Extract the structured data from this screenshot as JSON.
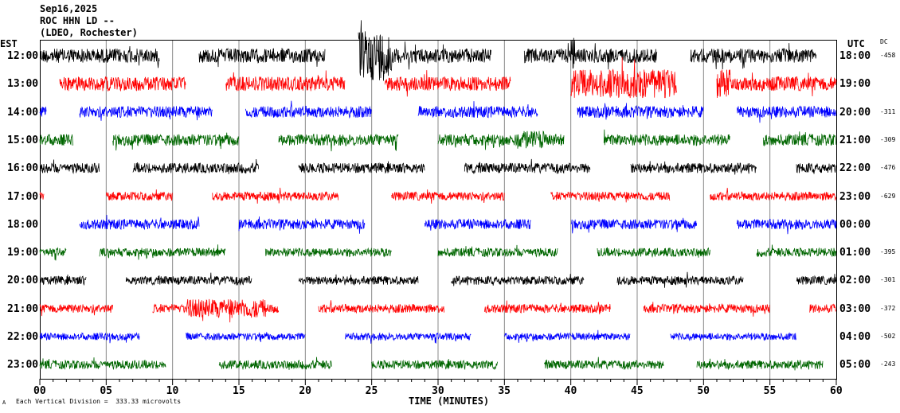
{
  "header": {
    "date": "Sep16,2025",
    "station": "ROC HHN LD --",
    "network": "(LDEO, Rochester)"
  },
  "left_label": "EST",
  "right_label": "UTC",
  "dc_label": "DC",
  "footer": {
    "scale_note": "Each Vertical Division =  333.33 microvolts",
    "corner_mark": "A"
  },
  "chart_data": {
    "type": "line",
    "title": "Sep16,2025 ROC HHN LD --",
    "xlabel": "TIME (MINUTES)",
    "xlim": [
      0,
      60
    ],
    "xticks": [
      "00",
      "05",
      "10",
      "15",
      "20",
      "25",
      "30",
      "35",
      "40",
      "45",
      "50",
      "55",
      "60"
    ],
    "grid": true,
    "rows": [
      {
        "est": "12:00",
        "utc": "18:00",
        "dc": "-458",
        "color": "#000000",
        "amp": 1.0,
        "segments": [
          [
            0,
            9
          ],
          [
            12,
            21.5
          ],
          [
            24,
            34
          ],
          [
            36.5,
            46.5
          ],
          [
            49,
            58.5
          ]
        ],
        "bursts": [
          [
            24,
            26.5,
            3.5
          ],
          [
            40,
            40.3,
            2.5
          ]
        ]
      },
      {
        "est": "13:00",
        "utc": "19:00",
        "dc": "",
        "color": "#ff0000",
        "amp": 1.0,
        "segments": [
          [
            1.5,
            11
          ],
          [
            14,
            23
          ],
          [
            26,
            35.5
          ],
          [
            40,
            48
          ],
          [
            51,
            60
          ]
        ],
        "bursts": [
          [
            40,
            48,
            2
          ],
          [
            51,
            52,
            2
          ]
        ]
      },
      {
        "est": "14:00",
        "utc": "20:00",
        "dc": "-311",
        "color": "#0000ff",
        "amp": 0.8,
        "segments": [
          [
            0,
            0.5
          ],
          [
            3,
            13
          ],
          [
            15.5,
            25
          ],
          [
            28.5,
            37.5
          ],
          [
            40.5,
            50
          ],
          [
            52.5,
            60
          ]
        ],
        "bursts": []
      },
      {
        "est": "15:00",
        "utc": "21:00",
        "dc": "-309",
        "color": "#006600",
        "amp": 0.8,
        "segments": [
          [
            0,
            2.5
          ],
          [
            5.5,
            15
          ],
          [
            18,
            27
          ],
          [
            30,
            39.5
          ],
          [
            42.5,
            52
          ],
          [
            54.5,
            60
          ]
        ],
        "bursts": [
          [
            36,
            38,
            1.6
          ]
        ]
      },
      {
        "est": "16:00",
        "utc": "22:00",
        "dc": "-476",
        "color": "#000000",
        "amp": 0.7,
        "segments": [
          [
            0,
            4.5
          ],
          [
            7,
            16.5
          ],
          [
            19.5,
            29
          ],
          [
            32,
            41.5
          ],
          [
            44.5,
            54
          ],
          [
            57,
            60
          ]
        ],
        "bursts": []
      },
      {
        "est": "17:00",
        "utc": "23:00",
        "dc": "-629",
        "color": "#ff0000",
        "amp": 0.6,
        "segments": [
          [
            0,
            0.3
          ],
          [
            5,
            10
          ],
          [
            13,
            22.5
          ],
          [
            26.5,
            35
          ],
          [
            38.5,
            47.5
          ],
          [
            50.5,
            60
          ]
        ],
        "bursts": []
      },
      {
        "est": "18:00",
        "utc": "00:00",
        "dc": "",
        "color": "#0000ff",
        "amp": 0.7,
        "segments": [
          [
            3,
            12
          ],
          [
            15,
            24.5
          ],
          [
            29,
            37
          ],
          [
            40,
            49.5
          ],
          [
            52.5,
            60
          ]
        ],
        "bursts": []
      },
      {
        "est": "19:00",
        "utc": "01:00",
        "dc": "-395",
        "color": "#006600",
        "amp": 0.6,
        "segments": [
          [
            0,
            2
          ],
          [
            4.5,
            14
          ],
          [
            17,
            26.5
          ],
          [
            30,
            39
          ],
          [
            42,
            50.5
          ],
          [
            54,
            60
          ]
        ],
        "bursts": []
      },
      {
        "est": "20:00",
        "utc": "02:00",
        "dc": "-301",
        "color": "#000000",
        "amp": 0.6,
        "segments": [
          [
            0,
            3.5
          ],
          [
            6.5,
            16
          ],
          [
            19.5,
            28.5
          ],
          [
            31,
            41
          ],
          [
            43.5,
            53
          ],
          [
            57,
            60
          ]
        ],
        "bursts": []
      },
      {
        "est": "21:00",
        "utc": "03:00",
        "dc": "-372",
        "color": "#ff0000",
        "amp": 0.6,
        "segments": [
          [
            0,
            5.5
          ],
          [
            8.5,
            18
          ],
          [
            21,
            30.5
          ],
          [
            33.5,
            43
          ],
          [
            45.5,
            55
          ],
          [
            58,
            60
          ]
        ],
        "bursts": [
          [
            11,
            17,
            2.2
          ]
        ]
      },
      {
        "est": "22:00",
        "utc": "04:00",
        "dc": "-502",
        "color": "#0000ff",
        "amp": 0.5,
        "segments": [
          [
            0,
            7.5
          ],
          [
            11,
            20
          ],
          [
            23,
            32.5
          ],
          [
            35,
            44.5
          ],
          [
            47.5,
            57
          ]
        ],
        "bursts": []
      },
      {
        "est": "23:00",
        "utc": "05:00",
        "dc": "-243",
        "color": "#006600",
        "amp": 0.6,
        "segments": [
          [
            0,
            9.5
          ],
          [
            13.5,
            22
          ],
          [
            25,
            34.5
          ],
          [
            38,
            47
          ],
          [
            49.5,
            59
          ]
        ],
        "bursts": []
      }
    ]
  }
}
